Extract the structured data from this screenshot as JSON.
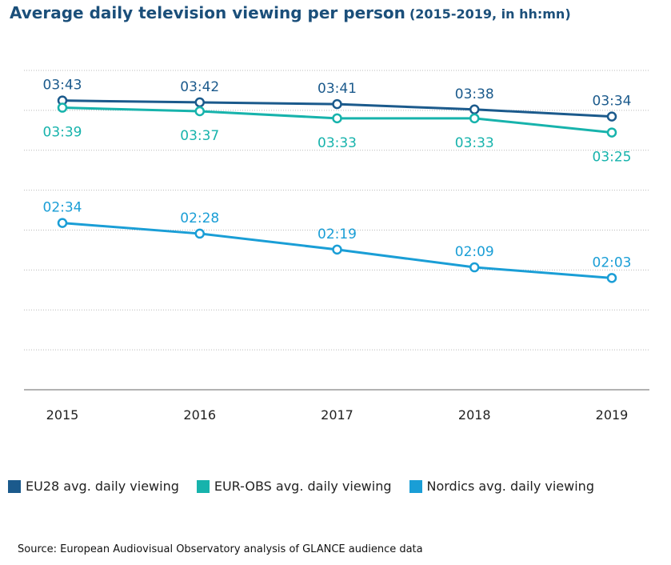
{
  "title": {
    "main": "Average daily television viewing per person",
    "sub": "(2015-2019, in hh:mn)"
  },
  "chart_data": {
    "type": "line",
    "title": "Average daily television viewing per person (2015-2019, in hh:mn)",
    "categories": [
      "2015",
      "2016",
      "2017",
      "2018",
      "2019"
    ],
    "ylim": [
      60,
      240
    ],
    "ylabel": "",
    "xlabel": "",
    "grid": true,
    "gridlines_count": 8,
    "series": [
      {
        "name": "EU28 avg. daily viewing",
        "color": "#1b5a8c",
        "values": [
          223,
          222,
          221,
          218,
          214
        ],
        "labels": [
          "03:43",
          "03:42",
          "03:41",
          "03:38",
          "03:34"
        ],
        "label_position": "above"
      },
      {
        "name": "EUR-OBS avg. daily viewing",
        "color": "#17b3ac",
        "values": [
          219,
          217,
          213,
          213,
          205
        ],
        "labels": [
          "03:39",
          "03:37",
          "03:33",
          "03:33",
          "03:25"
        ],
        "label_position": "below"
      },
      {
        "name": "Nordics avg. daily viewing",
        "color": "#1a9ed6",
        "values": [
          154,
          148,
          139,
          129,
          123
        ],
        "labels": [
          "02:34",
          "02:28",
          "02:19",
          "02:09",
          "02:03"
        ],
        "label_position": "above"
      }
    ]
  },
  "legend": {
    "placement": "bottom",
    "items": [
      {
        "label": "EU28 avg. daily viewing",
        "color": "#1b5a8c"
      },
      {
        "label": "EUR-OBS avg. daily viewing",
        "color": "#17b3ac"
      },
      {
        "label": "Nordics avg. daily viewing",
        "color": "#1a9ed6"
      }
    ]
  },
  "source": "Source: European Audiovisual Observatory analysis of GLANCE audience data"
}
